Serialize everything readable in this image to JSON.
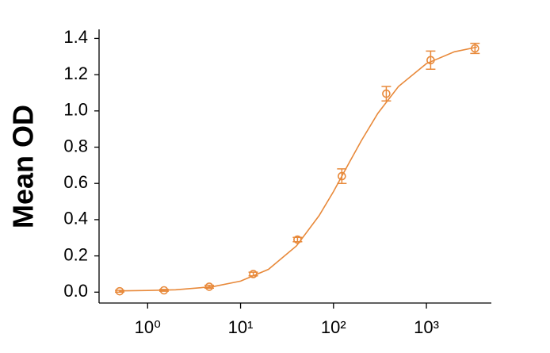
{
  "chart_data": {
    "type": "scatter",
    "xscale": "log",
    "ylabel": "Mean OD",
    "color": "#e8893a",
    "x": [
      0.5,
      1.5,
      4.6,
      13.7,
      41,
      123,
      370,
      1111,
      3333
    ],
    "values": [
      0.005,
      0.01,
      0.03,
      0.1,
      0.29,
      0.64,
      1.095,
      1.28,
      1.345
    ],
    "errors": [
      0.005,
      0.005,
      0.008,
      0.01,
      0.012,
      0.04,
      0.04,
      0.05,
      0.028
    ],
    "fit": {
      "x": [
        0.5,
        1,
        2,
        5,
        10,
        20,
        40,
        70,
        100,
        150,
        200,
        300,
        500,
        1000,
        2000,
        3500
      ],
      "values": [
        0.007,
        0.009,
        0.013,
        0.03,
        0.061,
        0.126,
        0.255,
        0.422,
        0.555,
        0.721,
        0.837,
        0.986,
        1.135,
        1.261,
        1.326,
        1.352
      ]
    },
    "xlim": [
      0.3,
      5000
    ],
    "ylim": [
      -0.06,
      1.45
    ],
    "xticks": [
      {
        "value": 1,
        "label": "10⁰"
      },
      {
        "value": 10,
        "label": "10¹"
      },
      {
        "value": 100,
        "label": "10²"
      },
      {
        "value": 1000,
        "label": "10³"
      }
    ],
    "yticks": [
      {
        "value": 0,
        "label": "0.0"
      },
      {
        "value": 0.2,
        "label": "0.2"
      },
      {
        "value": 0.4,
        "label": "0.4"
      },
      {
        "value": 0.6,
        "label": "0.6"
      },
      {
        "value": 0.8,
        "label": "0.8"
      },
      {
        "value": 1,
        "label": "1.0"
      },
      {
        "value": 1.2,
        "label": "1.2"
      },
      {
        "value": 1.4,
        "label": "1.4"
      }
    ]
  }
}
